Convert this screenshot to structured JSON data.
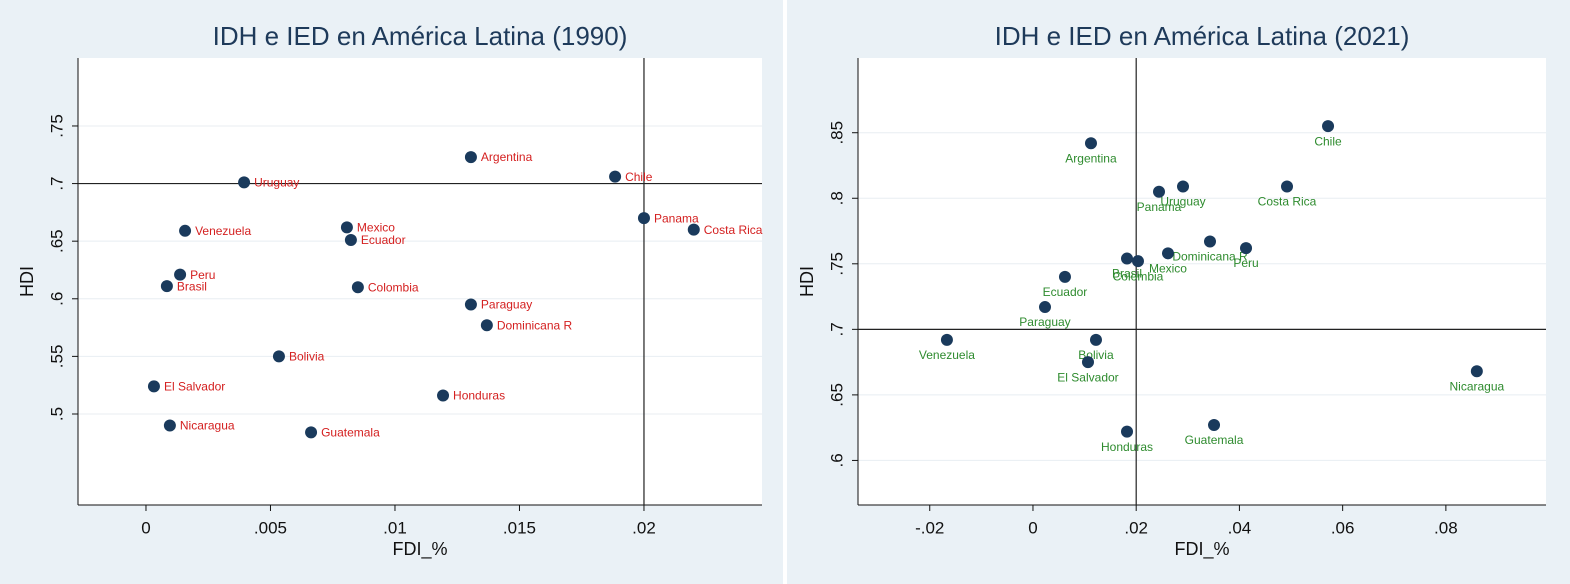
{
  "chart_data": [
    {
      "type": "scatter",
      "title": "IDH e IED en América Latina (1990)",
      "x_label": "FDI_%",
      "y_label": "HDI",
      "labels": [
        "Uruguay",
        "Argentina",
        "Chile",
        "Panama",
        "Costa Rica",
        "Venezuela",
        "Mexico",
        "Ecuador",
        "Peru",
        "Brasil",
        "Colombia",
        "Paraguay",
        "Dominicana R",
        "Bolivia",
        "El Salvador",
        "Honduras",
        "Nicaragua",
        "Guatemala"
      ],
      "x": [
        0.00394,
        0.01305,
        0.01884,
        0.02,
        0.022,
        0.00157,
        0.00807,
        0.00823,
        0.00137,
        0.00084,
        0.00851,
        0.01305,
        0.01369,
        0.00534,
        0.00032,
        0.01193,
        0.00096,
        0.00663
      ],
      "values": [
        0.701,
        0.723,
        0.706,
        0.67,
        0.66,
        0.659,
        0.662,
        0.651,
        0.621,
        0.611,
        0.61,
        0.595,
        0.577,
        0.55,
        0.524,
        0.516,
        0.49,
        0.484
      ],
      "color": "#1a3a5c",
      "label_color": "#d42020",
      "xlim": [
        -0.00273,
        0.02474
      ],
      "ylim": [
        0.421,
        0.809
      ],
      "xticks": [
        0,
        {
          "value": 0.005,
          "label": ".005"
        },
        {
          "value": 0.01,
          "label": ".01"
        },
        {
          "value": 0.015,
          "label": ".015"
        },
        {
          "value": 0.02,
          "label": ".02"
        }
      ],
      "yticks": [
        {
          "value": 0.5,
          "label": ".5"
        },
        {
          "value": 0.55,
          "label": ".55"
        },
        {
          "value": 0.6,
          "label": ".6"
        },
        {
          "value": 0.65,
          "label": ".65"
        },
        {
          "value": 0.7,
          "label": ".7"
        },
        {
          "value": 0.75,
          "label": ".75"
        }
      ],
      "xline": 0.02,
      "yline": 0.7,
      "grid": true
    },
    {
      "type": "scatter",
      "title": "IDH e IED en América Latina (2021)",
      "x_label": "FDI_%",
      "y_label": "HDI",
      "labels": [
        "Argentina",
        "Chile",
        "Panama",
        "Uruguay",
        "Costa Rica",
        "Dominicana R",
        "Peru",
        "Brasil",
        "Colombia",
        "Mexico",
        "Ecuador",
        "Paraguay",
        "Venezuela",
        "Bolivia",
        "El Salvador",
        "Nicaragua",
        "Honduras",
        "Guatemala"
      ],
      "x": [
        0.01124,
        0.05717,
        0.02442,
        0.02907,
        0.04922,
        0.0343,
        0.04128,
        0.01822,
        0.02035,
        0.02616,
        0.0062,
        0.00233,
        -0.01667,
        0.01221,
        0.01066,
        0.086,
        0.01822,
        0.03508
      ],
      "values": [
        0.842,
        0.855,
        0.805,
        0.809,
        0.809,
        0.767,
        0.762,
        0.754,
        0.752,
        0.758,
        0.74,
        0.717,
        0.692,
        0.692,
        0.675,
        0.668,
        0.622,
        0.627
      ],
      "color": "#1a3a5c",
      "label_color": "#2e8b2e",
      "xlim": [
        -0.0339,
        0.0994
      ],
      "ylim": [
        0.566,
        0.907
      ],
      "xticks": [
        {
          "value": -0.02,
          "label": "-.02"
        },
        0,
        {
          "value": 0.02,
          "label": ".02"
        },
        {
          "value": 0.04,
          "label": ".04"
        },
        {
          "value": 0.06,
          "label": ".06"
        },
        {
          "value": 0.08,
          "label": ".08"
        }
      ],
      "yticks": [
        {
          "value": 0.6,
          "label": ".6"
        },
        {
          "value": 0.65,
          "label": ".65"
        },
        {
          "value": 0.7,
          "label": ".7"
        },
        {
          "value": 0.75,
          "label": ".75"
        },
        {
          "value": 0.8,
          "label": ".8"
        },
        {
          "value": 0.85,
          "label": ".85"
        }
      ],
      "xline": 0.02,
      "yline": 0.7,
      "grid": true
    }
  ]
}
